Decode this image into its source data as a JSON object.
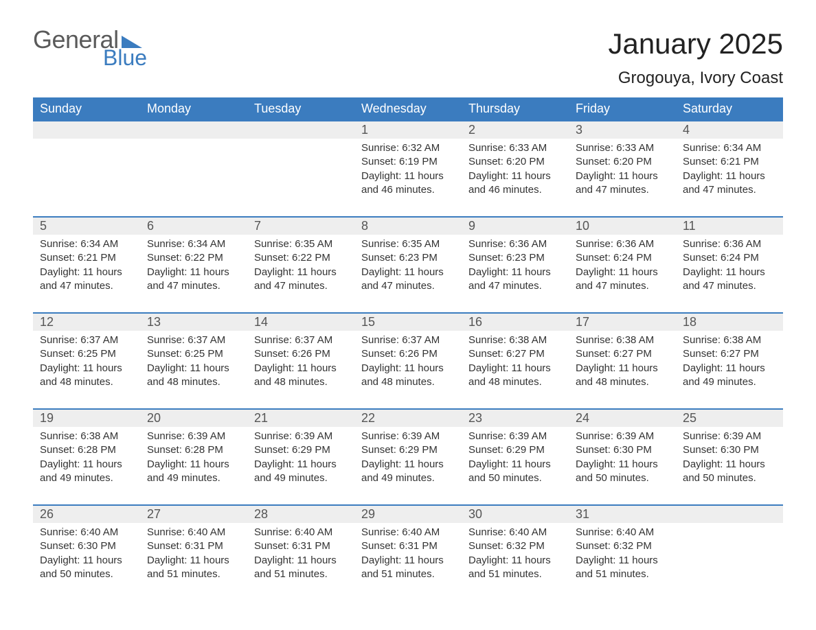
{
  "logo": {
    "word1": "General",
    "word2": "Blue",
    "text_color": "#5a5a5a",
    "accent_color": "#3b7cbf"
  },
  "title": "January 2025",
  "location": "Grogouya, Ivory Coast",
  "colors": {
    "header_bg": "#3b7cbf",
    "header_text": "#ffffff",
    "row_border": "#3b7cbf",
    "daynum_bg": "#eeeeee",
    "body_text": "#333333",
    "background": "#ffffff"
  },
  "typography": {
    "title_fontsize": 42,
    "location_fontsize": 24,
    "header_fontsize": 18,
    "daynum_fontsize": 18,
    "body_fontsize": 15
  },
  "layout": {
    "columns": 7,
    "rows": 5,
    "leading_blanks": 3,
    "trailing_blanks": 1
  },
  "weekdays": [
    "Sunday",
    "Monday",
    "Tuesday",
    "Wednesday",
    "Thursday",
    "Friday",
    "Saturday"
  ],
  "days": [
    {
      "n": 1,
      "sunrise": "6:32 AM",
      "sunset": "6:19 PM",
      "daylight": "11 hours and 46 minutes."
    },
    {
      "n": 2,
      "sunrise": "6:33 AM",
      "sunset": "6:20 PM",
      "daylight": "11 hours and 46 minutes."
    },
    {
      "n": 3,
      "sunrise": "6:33 AM",
      "sunset": "6:20 PM",
      "daylight": "11 hours and 47 minutes."
    },
    {
      "n": 4,
      "sunrise": "6:34 AM",
      "sunset": "6:21 PM",
      "daylight": "11 hours and 47 minutes."
    },
    {
      "n": 5,
      "sunrise": "6:34 AM",
      "sunset": "6:21 PM",
      "daylight": "11 hours and 47 minutes."
    },
    {
      "n": 6,
      "sunrise": "6:34 AM",
      "sunset": "6:22 PM",
      "daylight": "11 hours and 47 minutes."
    },
    {
      "n": 7,
      "sunrise": "6:35 AM",
      "sunset": "6:22 PM",
      "daylight": "11 hours and 47 minutes."
    },
    {
      "n": 8,
      "sunrise": "6:35 AM",
      "sunset": "6:23 PM",
      "daylight": "11 hours and 47 minutes."
    },
    {
      "n": 9,
      "sunrise": "6:36 AM",
      "sunset": "6:23 PM",
      "daylight": "11 hours and 47 minutes."
    },
    {
      "n": 10,
      "sunrise": "6:36 AM",
      "sunset": "6:24 PM",
      "daylight": "11 hours and 47 minutes."
    },
    {
      "n": 11,
      "sunrise": "6:36 AM",
      "sunset": "6:24 PM",
      "daylight": "11 hours and 47 minutes."
    },
    {
      "n": 12,
      "sunrise": "6:37 AM",
      "sunset": "6:25 PM",
      "daylight": "11 hours and 48 minutes."
    },
    {
      "n": 13,
      "sunrise": "6:37 AM",
      "sunset": "6:25 PM",
      "daylight": "11 hours and 48 minutes."
    },
    {
      "n": 14,
      "sunrise": "6:37 AM",
      "sunset": "6:26 PM",
      "daylight": "11 hours and 48 minutes."
    },
    {
      "n": 15,
      "sunrise": "6:37 AM",
      "sunset": "6:26 PM",
      "daylight": "11 hours and 48 minutes."
    },
    {
      "n": 16,
      "sunrise": "6:38 AM",
      "sunset": "6:27 PM",
      "daylight": "11 hours and 48 minutes."
    },
    {
      "n": 17,
      "sunrise": "6:38 AM",
      "sunset": "6:27 PM",
      "daylight": "11 hours and 48 minutes."
    },
    {
      "n": 18,
      "sunrise": "6:38 AM",
      "sunset": "6:27 PM",
      "daylight": "11 hours and 49 minutes."
    },
    {
      "n": 19,
      "sunrise": "6:38 AM",
      "sunset": "6:28 PM",
      "daylight": "11 hours and 49 minutes."
    },
    {
      "n": 20,
      "sunrise": "6:39 AM",
      "sunset": "6:28 PM",
      "daylight": "11 hours and 49 minutes."
    },
    {
      "n": 21,
      "sunrise": "6:39 AM",
      "sunset": "6:29 PM",
      "daylight": "11 hours and 49 minutes."
    },
    {
      "n": 22,
      "sunrise": "6:39 AM",
      "sunset": "6:29 PM",
      "daylight": "11 hours and 49 minutes."
    },
    {
      "n": 23,
      "sunrise": "6:39 AM",
      "sunset": "6:29 PM",
      "daylight": "11 hours and 50 minutes."
    },
    {
      "n": 24,
      "sunrise": "6:39 AM",
      "sunset": "6:30 PM",
      "daylight": "11 hours and 50 minutes."
    },
    {
      "n": 25,
      "sunrise": "6:39 AM",
      "sunset": "6:30 PM",
      "daylight": "11 hours and 50 minutes."
    },
    {
      "n": 26,
      "sunrise": "6:40 AM",
      "sunset": "6:30 PM",
      "daylight": "11 hours and 50 minutes."
    },
    {
      "n": 27,
      "sunrise": "6:40 AM",
      "sunset": "6:31 PM",
      "daylight": "11 hours and 51 minutes."
    },
    {
      "n": 28,
      "sunrise": "6:40 AM",
      "sunset": "6:31 PM",
      "daylight": "11 hours and 51 minutes."
    },
    {
      "n": 29,
      "sunrise": "6:40 AM",
      "sunset": "6:31 PM",
      "daylight": "11 hours and 51 minutes."
    },
    {
      "n": 30,
      "sunrise": "6:40 AM",
      "sunset": "6:32 PM",
      "daylight": "11 hours and 51 minutes."
    },
    {
      "n": 31,
      "sunrise": "6:40 AM",
      "sunset": "6:32 PM",
      "daylight": "11 hours and 51 minutes."
    }
  ],
  "labels": {
    "sunrise": "Sunrise:",
    "sunset": "Sunset:",
    "daylight": "Daylight:"
  }
}
